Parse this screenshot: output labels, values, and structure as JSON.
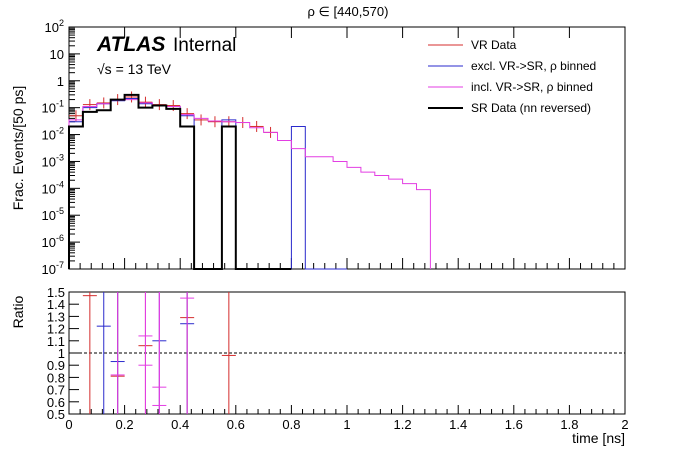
{
  "chart_data": [
    {
      "type": "line",
      "title": "ρ ∈ [440,570)",
      "ylabel": "Frac. Events/[50 ps]",
      "xlabel": "",
      "xlim": [
        0,
        2
      ],
      "ylim": [
        1e-07,
        100
      ],
      "log_y": true,
      "y_tick_labels": [
        "10^-7",
        "10^-6",
        "10^-5",
        "10^-4",
        "10^-3",
        "10^-2",
        "10^-1",
        "1",
        "10",
        "10^2"
      ],
      "annotations": {
        "atlas": "ATLAS",
        "internal": "Internal",
        "energy": "√s = 13 TeV"
      },
      "legend_position": "top-right",
      "bin_width": 0.05,
      "series": [
        {
          "name": "VR Data",
          "color": "#d42c2c",
          "style": "points",
          "values": [
            0.05,
            0.13,
            0.15,
            0.2,
            0.25,
            0.16,
            0.13,
            0.12,
            0.06,
            0.035,
            0.03,
            0.03,
            0.028,
            0.02,
            0.012
          ]
        },
        {
          "name": "excl. VR->SR, ρ binned",
          "color": "#2a2acc",
          "style": "hist",
          "values": [
            0.03,
            0.1,
            0.14,
            0.18,
            0.22,
            0.14,
            0.12,
            0.11,
            0.05,
            0.0,
            0.0,
            0.035,
            0.0,
            0.0,
            0.0,
            0.0,
            0.02,
            0.0,
            0.0,
            0.0
          ]
        },
        {
          "name": "incl. VR->SR, ρ binned",
          "color": "#e33ee3",
          "style": "hist",
          "values": [
            0.035,
            0.11,
            0.14,
            0.19,
            0.2,
            0.15,
            0.12,
            0.11,
            0.055,
            0.04,
            0.032,
            0.03,
            0.028,
            0.018,
            0.012,
            0.006,
            0.003,
            0.0015,
            0.0015,
            0.001,
            0.0006,
            0.0004,
            0.0003,
            0.00022,
            0.00015,
            9e-05
          ]
        },
        {
          "name": "SR Data (nn reversed)",
          "color": "#000000",
          "style": "hist",
          "values": [
            0.02,
            0.07,
            0.08,
            0.2,
            0.3,
            0.1,
            0.12,
            0.09,
            0.02,
            0.0,
            0.0,
            0.02,
            0.0,
            0.0,
            0.0,
            0.0
          ]
        }
      ]
    },
    {
      "type": "scatter",
      "ylabel": "Ratio",
      "xlabel": "time [ns]",
      "xlim": [
        0,
        2
      ],
      "ylim": [
        0.5,
        1.5
      ],
      "x_tick_labels": [
        "0",
        "0.2",
        "0.4",
        "0.6",
        "0.8",
        "1",
        "1.2",
        "1.4",
        "1.6",
        "1.8",
        "2"
      ],
      "y_tick_labels": [
        "0.5",
        "0.6",
        "0.7",
        "0.8",
        "0.9",
        "1",
        "1.1",
        "1.2",
        "1.3",
        "1.4",
        "1.5"
      ],
      "reference_line": 1,
      "series": [
        {
          "color": "#d42c2c",
          "points": [
            {
              "x": 0.075,
              "y": 1.47,
              "lo": 0.5,
              "hi": 1.5
            },
            {
              "x": 0.175,
              "y": 0.81,
              "lo": 0.5,
              "hi": 1.5
            },
            {
              "x": 0.275,
              "y": 1.06,
              "lo": 0.5,
              "hi": 1.5
            },
            {
              "x": 0.425,
              "y": 1.29,
              "lo": 0.5,
              "hi": 1.5
            },
            {
              "x": 0.575,
              "y": 0.98,
              "lo": 0.5,
              "hi": 1.5
            }
          ]
        },
        {
          "color": "#2a2acc",
          "points": [
            {
              "x": 0.125,
              "y": 1.22,
              "lo": 0.5,
              "hi": 1.5
            },
            {
              "x": 0.175,
              "y": 0.93,
              "lo": 0.5,
              "hi": 1.5
            },
            {
              "x": 0.325,
              "y": 1.1,
              "lo": 0.5,
              "hi": 1.5
            },
            {
              "x": 0.425,
              "y": 1.24,
              "lo": 0.5,
              "hi": 1.5
            }
          ]
        },
        {
          "color": "#e33ee3",
          "points": [
            {
              "x": 0.175,
              "y": 0.82,
              "lo": 0.5,
              "hi": 1.5
            },
            {
              "x": 0.275,
              "y": 1.14,
              "lo": 0.5,
              "hi": 1.5
            },
            {
              "x": 0.275,
              "y": 0.9,
              "lo": 0.5,
              "hi": 1.5
            },
            {
              "x": 0.325,
              "y": 0.72,
              "lo": 0.5,
              "hi": 1.5
            },
            {
              "x": 0.325,
              "y": 0.57,
              "lo": 0.5,
              "hi": 1.5
            },
            {
              "x": 0.425,
              "y": 1.45,
              "lo": 0.5,
              "hi": 1.5
            }
          ]
        }
      ]
    }
  ]
}
